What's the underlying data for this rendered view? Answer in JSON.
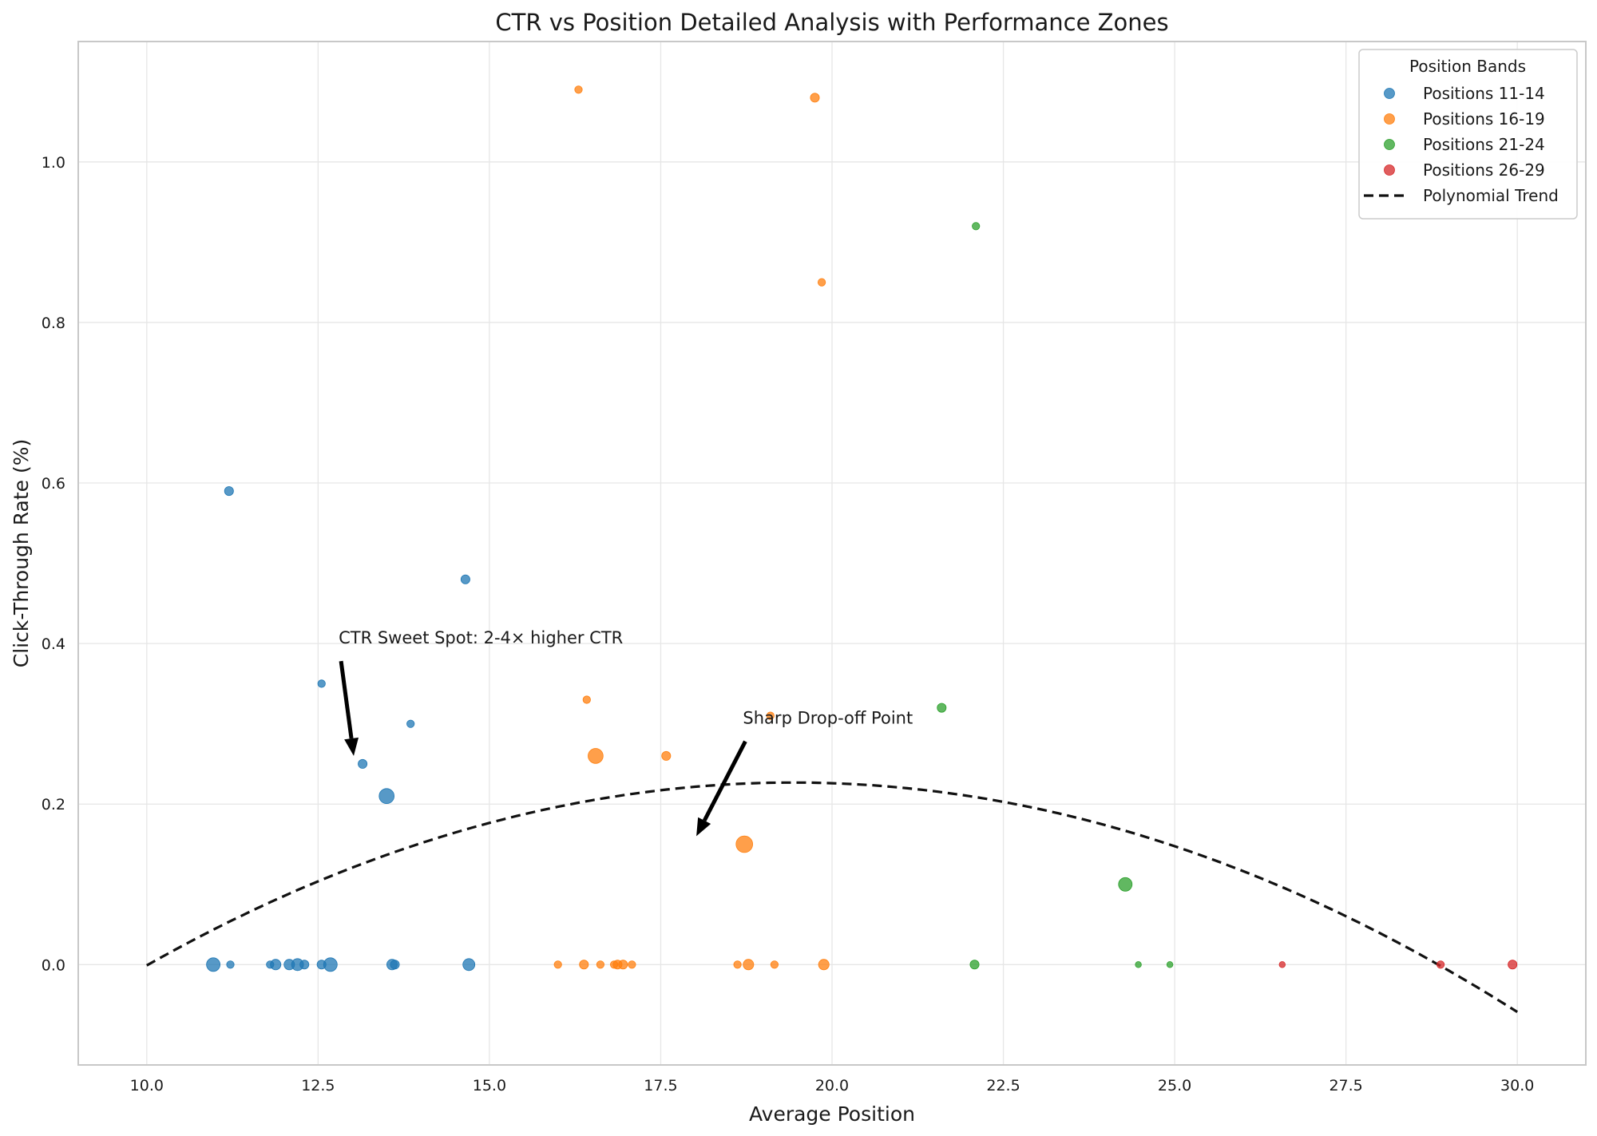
{
  "chart_data": {
    "type": "scatter",
    "title": "CTR vs Position Detailed Analysis with Performance Zones",
    "xlabel": "Average Position",
    "ylabel": "Click-Through Rate (%)",
    "xlim": [
      9.0,
      31.0
    ],
    "ylim": [
      -0.125,
      1.15
    ],
    "xticks": [
      10.0,
      12.5,
      15.0,
      17.5,
      20.0,
      22.5,
      25.0,
      27.5,
      30.0
    ],
    "xtick_labels": [
      "10.0",
      "12.5",
      "15.0",
      "17.5",
      "20.0",
      "22.5",
      "25.0",
      "27.5",
      "30.0"
    ],
    "yticks": [
      0.0,
      0.2,
      0.4,
      0.6,
      0.8,
      1.0
    ],
    "ytick_labels": [
      "0.0",
      "0.2",
      "0.4",
      "0.6",
      "0.8",
      "1.0"
    ],
    "grid": true,
    "legend": {
      "title": "Position Bands",
      "position": "top-right"
    },
    "series": [
      {
        "name": "Positions 11-14",
        "color": "#1f77b4",
        "points": [
          {
            "x": 11.2,
            "y": 0.59,
            "s": 3
          },
          {
            "x": 14.65,
            "y": 0.48,
            "s": 3
          },
          {
            "x": 12.55,
            "y": 0.35,
            "s": 2
          },
          {
            "x": 13.85,
            "y": 0.3,
            "s": 2
          },
          {
            "x": 13.15,
            "y": 0.25,
            "s": 3
          },
          {
            "x": 13.5,
            "y": 0.21,
            "s": 7
          },
          {
            "x": 10.97,
            "y": 0.0,
            "s": 6
          },
          {
            "x": 11.22,
            "y": 0.0,
            "s": 2
          },
          {
            "x": 11.8,
            "y": 0.0,
            "s": 2
          },
          {
            "x": 11.88,
            "y": 0.0,
            "s": 4
          },
          {
            "x": 12.08,
            "y": 0.0,
            "s": 4
          },
          {
            "x": 12.2,
            "y": 0.0,
            "s": 5
          },
          {
            "x": 12.3,
            "y": 0.0,
            "s": 3
          },
          {
            "x": 12.55,
            "y": 0.0,
            "s": 3
          },
          {
            "x": 12.68,
            "y": 0.0,
            "s": 6
          },
          {
            "x": 13.58,
            "y": 0.0,
            "s": 4
          },
          {
            "x": 13.62,
            "y": 0.0,
            "s": 3
          },
          {
            "x": 14.7,
            "y": 0.0,
            "s": 5
          }
        ]
      },
      {
        "name": "Positions 16-19",
        "color": "#ff7f0e",
        "points": [
          {
            "x": 16.3,
            "y": 1.09,
            "s": 2
          },
          {
            "x": 19.75,
            "y": 1.08,
            "s": 3
          },
          {
            "x": 19.85,
            "y": 0.85,
            "s": 2
          },
          {
            "x": 16.42,
            "y": 0.33,
            "s": 2
          },
          {
            "x": 19.1,
            "y": 0.31,
            "s": 2
          },
          {
            "x": 16.55,
            "y": 0.26,
            "s": 7
          },
          {
            "x": 17.58,
            "y": 0.26,
            "s": 3
          },
          {
            "x": 18.72,
            "y": 0.15,
            "s": 8
          },
          {
            "x": 16.0,
            "y": 0.0,
            "s": 2
          },
          {
            "x": 16.38,
            "y": 0.0,
            "s": 3
          },
          {
            "x": 16.62,
            "y": 0.0,
            "s": 2
          },
          {
            "x": 16.82,
            "y": 0.0,
            "s": 2
          },
          {
            "x": 16.87,
            "y": 0.0,
            "s": 3
          },
          {
            "x": 16.95,
            "y": 0.0,
            "s": 3
          },
          {
            "x": 17.08,
            "y": 0.0,
            "s": 2
          },
          {
            "x": 18.62,
            "y": 0.0,
            "s": 2
          },
          {
            "x": 18.78,
            "y": 0.0,
            "s": 4
          },
          {
            "x": 19.16,
            "y": 0.0,
            "s": 2
          },
          {
            "x": 19.88,
            "y": 0.0,
            "s": 4
          }
        ]
      },
      {
        "name": "Positions 21-24",
        "color": "#2ca02c",
        "points": [
          {
            "x": 22.1,
            "y": 0.92,
            "s": 2
          },
          {
            "x": 21.6,
            "y": 0.32,
            "s": 3
          },
          {
            "x": 24.28,
            "y": 0.1,
            "s": 6
          },
          {
            "x": 22.08,
            "y": 0.0,
            "s": 3
          },
          {
            "x": 24.47,
            "y": 0.0,
            "s": 1
          },
          {
            "x": 24.93,
            "y": 0.0,
            "s": 1
          }
        ]
      },
      {
        "name": "Positions 26-29",
        "color": "#d62728",
        "points": [
          {
            "x": 26.57,
            "y": 0.0,
            "s": 1
          },
          {
            "x": 28.88,
            "y": 0.0,
            "s": 2
          },
          {
            "x": 29.93,
            "y": 0.0,
            "s": 3
          }
        ]
      }
    ],
    "trend": {
      "name": "Polynomial Trend",
      "type": "quadratic",
      "color": "#111111",
      "coefficients": [
        -0.74,
        0.0995,
        -0.00256
      ],
      "x_range": [
        10.0,
        30.0
      ]
    },
    "annotations": [
      {
        "text": "CTR Sweet Spot: 2-4× higher CTR",
        "xytext": [
          12.8,
          0.4
        ],
        "xy": [
          13.02,
          0.26
        ]
      },
      {
        "text": "Sharp Drop-off Point",
        "xytext": [
          18.7,
          0.3
        ],
        "xy": [
          18.02,
          0.16
        ]
      }
    ]
  }
}
